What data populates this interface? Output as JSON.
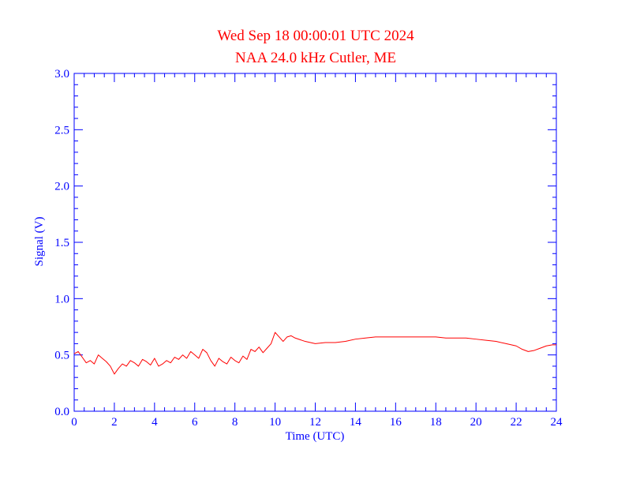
{
  "chart_data": {
    "type": "line",
    "title": "Wed Sep 18 00:00:01 UTC 2024",
    "subtitle": "NAA 24.0 kHz Cutler, ME",
    "xlabel": "Time (UTC)",
    "ylabel": "Signal (V)",
    "xlim": [
      0,
      24
    ],
    "ylim": [
      0.0,
      3.0
    ],
    "x_ticks": [
      0,
      2,
      4,
      6,
      8,
      10,
      12,
      14,
      16,
      18,
      20,
      22,
      24
    ],
    "x_tick_labels": [
      "0",
      "2",
      "4",
      "6",
      "8",
      "10",
      "12",
      "14",
      "16",
      "18",
      "20",
      "22",
      "24"
    ],
    "y_ticks": [
      0.0,
      0.5,
      1.0,
      1.5,
      2.0,
      2.5,
      3.0
    ],
    "y_tick_labels": [
      "0.0",
      "0.5",
      "1.0",
      "1.5",
      "2.0",
      "2.5",
      "3.0"
    ],
    "grid": false,
    "colors": {
      "series": "#ff0000",
      "axes": "#0000ff",
      "title": "#ff0000"
    },
    "series": [
      {
        "x": [
          0.0,
          0.2,
          0.4,
          0.6,
          0.8,
          1.0,
          1.2,
          1.4,
          1.6,
          1.8,
          2.0,
          2.2,
          2.4,
          2.6,
          2.8,
          3.0,
          3.2,
          3.4,
          3.6,
          3.8,
          4.0,
          4.2,
          4.4,
          4.6,
          4.8,
          5.0,
          5.2,
          5.4,
          5.6,
          5.8,
          6.0,
          6.2,
          6.4,
          6.6,
          6.8,
          7.0,
          7.2,
          7.4,
          7.6,
          7.8,
          8.0,
          8.2,
          8.4,
          8.6,
          8.8,
          9.0,
          9.2,
          9.4,
          9.6,
          9.8,
          10.0,
          10.2,
          10.4,
          10.6,
          10.8,
          11.0,
          11.5,
          12.0,
          12.5,
          13.0,
          13.5,
          14.0,
          14.5,
          15.0,
          15.5,
          16.0,
          16.5,
          17.0,
          17.5,
          18.0,
          18.5,
          19.0,
          19.5,
          20.0,
          20.5,
          21.0,
          21.5,
          22.0,
          22.3,
          22.6,
          22.9,
          23.2,
          23.5,
          23.8,
          24.0
        ],
        "y": [
          0.51,
          0.53,
          0.48,
          0.43,
          0.45,
          0.42,
          0.5,
          0.47,
          0.44,
          0.4,
          0.33,
          0.38,
          0.42,
          0.4,
          0.45,
          0.43,
          0.4,
          0.46,
          0.44,
          0.41,
          0.47,
          0.4,
          0.42,
          0.45,
          0.43,
          0.48,
          0.46,
          0.5,
          0.47,
          0.53,
          0.5,
          0.47,
          0.55,
          0.52,
          0.45,
          0.4,
          0.47,
          0.44,
          0.42,
          0.48,
          0.45,
          0.43,
          0.49,
          0.46,
          0.55,
          0.53,
          0.57,
          0.52,
          0.56,
          0.6,
          0.7,
          0.66,
          0.62,
          0.66,
          0.67,
          0.65,
          0.62,
          0.6,
          0.61,
          0.61,
          0.62,
          0.64,
          0.65,
          0.66,
          0.66,
          0.66,
          0.66,
          0.66,
          0.66,
          0.66,
          0.65,
          0.65,
          0.65,
          0.64,
          0.63,
          0.62,
          0.6,
          0.58,
          0.55,
          0.53,
          0.54,
          0.56,
          0.58,
          0.59,
          0.59
        ]
      }
    ]
  }
}
